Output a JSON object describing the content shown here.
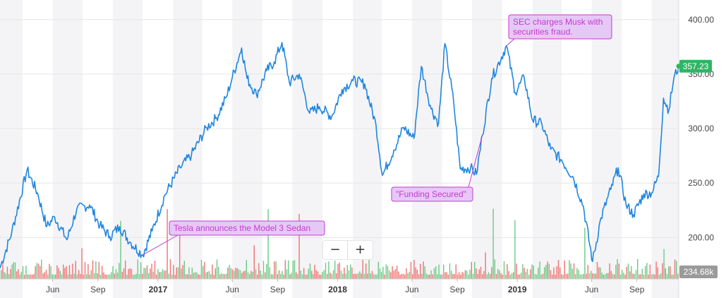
{
  "chart_data": {
    "type": "line",
    "title": "",
    "xlabel": "",
    "ylabel": "",
    "ylim": [
      162,
      418
    ],
    "y_ticks": [
      200,
      250,
      300,
      350,
      400
    ],
    "y_tick_labels": [
      "200.00",
      "250.00",
      "300.00",
      "350.00",
      "400.00"
    ],
    "x_range": [
      "2016-02-15",
      "2019-11-25"
    ],
    "x_ticks": [
      {
        "date": "2016-06-01",
        "label": "Jun",
        "year": false
      },
      {
        "date": "2016-09-01",
        "label": "Sep",
        "year": false
      },
      {
        "date": "2017-01-01",
        "label": "2017",
        "year": true
      },
      {
        "date": "2017-06-01",
        "label": "Jun",
        "year": false
      },
      {
        "date": "2017-09-01",
        "label": "Sep",
        "year": false
      },
      {
        "date": "2018-01-01",
        "label": "2018",
        "year": true
      },
      {
        "date": "2018-06-01",
        "label": "Jun",
        "year": false
      },
      {
        "date": "2018-09-01",
        "label": "Sep",
        "year": false
      },
      {
        "date": "2019-01-01",
        "label": "2019",
        "year": true
      },
      {
        "date": "2019-06-01",
        "label": "Jun",
        "year": false
      },
      {
        "date": "2019-09-01",
        "label": "Sep",
        "year": false
      }
    ],
    "grid": true,
    "series": [
      {
        "name": "",
        "color": "#1f86e0",
        "points": [
          [
            "2016-02-15",
            172
          ],
          [
            "2016-03-10",
            205
          ],
          [
            "2016-04-10",
            262
          ],
          [
            "2016-05-01",
            241
          ],
          [
            "2016-05-20",
            210
          ],
          [
            "2016-06-05",
            219
          ],
          [
            "2016-06-30",
            198
          ],
          [
            "2016-07-20",
            226
          ],
          [
            "2016-08-15",
            230
          ],
          [
            "2016-09-05",
            211
          ],
          [
            "2016-09-25",
            201
          ],
          [
            "2016-10-15",
            210
          ],
          [
            "2016-11-05",
            196
          ],
          [
            "2016-12-01",
            184
          ],
          [
            "2016-12-20",
            206
          ],
          [
            "2017-01-15",
            239
          ],
          [
            "2017-02-15",
            264
          ],
          [
            "2017-03-10",
            276
          ],
          [
            "2017-04-10",
            301
          ],
          [
            "2017-04-30",
            310
          ],
          [
            "2017-05-20",
            329
          ],
          [
            "2017-06-01",
            347
          ],
          [
            "2017-06-20",
            374
          ],
          [
            "2017-07-01",
            346
          ],
          [
            "2017-07-20",
            331
          ],
          [
            "2017-08-10",
            353
          ],
          [
            "2017-08-25",
            361
          ],
          [
            "2017-09-10",
            379
          ],
          [
            "2017-09-25",
            342
          ],
          [
            "2017-10-15",
            350
          ],
          [
            "2017-11-05",
            314
          ],
          [
            "2017-11-25",
            320
          ],
          [
            "2017-12-20",
            311
          ],
          [
            "2018-01-10",
            336
          ],
          [
            "2018-02-01",
            344
          ],
          [
            "2018-02-25",
            341
          ],
          [
            "2018-03-20",
            303
          ],
          [
            "2018-04-02",
            257
          ],
          [
            "2018-04-25",
            280
          ],
          [
            "2018-05-15",
            301
          ],
          [
            "2018-06-05",
            291
          ],
          [
            "2018-06-20",
            357
          ],
          [
            "2018-07-10",
            318
          ],
          [
            "2018-07-25",
            305
          ],
          [
            "2018-08-07",
            378
          ],
          [
            "2018-08-25",
            323
          ],
          [
            "2018-09-07",
            263
          ],
          [
            "2018-09-28",
            264
          ],
          [
            "2018-10-10",
            258
          ],
          [
            "2018-10-22",
            294
          ],
          [
            "2018-11-10",
            346
          ],
          [
            "2018-12-10",
            376
          ],
          [
            "2018-12-28",
            333
          ],
          [
            "2019-01-15",
            347
          ],
          [
            "2019-02-01",
            308
          ],
          [
            "2019-02-20",
            304
          ],
          [
            "2019-03-10",
            281
          ],
          [
            "2019-04-01",
            271
          ],
          [
            "2019-04-25",
            255
          ],
          [
            "2019-05-15",
            229
          ],
          [
            "2019-06-03",
            178
          ],
          [
            "2019-06-20",
            218
          ],
          [
            "2019-07-10",
            244
          ],
          [
            "2019-07-25",
            264
          ],
          [
            "2019-08-10",
            230
          ],
          [
            "2019-08-25",
            221
          ],
          [
            "2019-09-15",
            240
          ],
          [
            "2019-10-01",
            241
          ],
          [
            "2019-10-15",
            256
          ],
          [
            "2019-10-25",
            328
          ],
          [
            "2019-11-05",
            317
          ],
          [
            "2019-11-15",
            346
          ],
          [
            "2019-11-25",
            357.23
          ]
        ]
      }
    ],
    "volume": {
      "type": "bar",
      "last_label": "234.68k",
      "up_color": "#52bf6e",
      "down_color": "#ef5b5b"
    },
    "last_value": {
      "label": "357.23",
      "value": 357.23,
      "color": "#2db665"
    },
    "annotations": [
      {
        "text": [
          "Tesla announces the Model 3 Sedan"
        ],
        "date": "2016-12-01",
        "value": 184
      },
      {
        "text": [
          "\"Funding Secured\""
        ],
        "date": "2018-10-22",
        "value": 294
      },
      {
        "text": [
          "SEC charges Musk with",
          "securities fraud."
        ],
        "date": "2018-12-10",
        "value": 376
      }
    ],
    "annotation_color": "#c43bd0",
    "annotation_fill": "#e6c8f6"
  },
  "zoom": {
    "out_label": "−",
    "in_label": "+"
  }
}
